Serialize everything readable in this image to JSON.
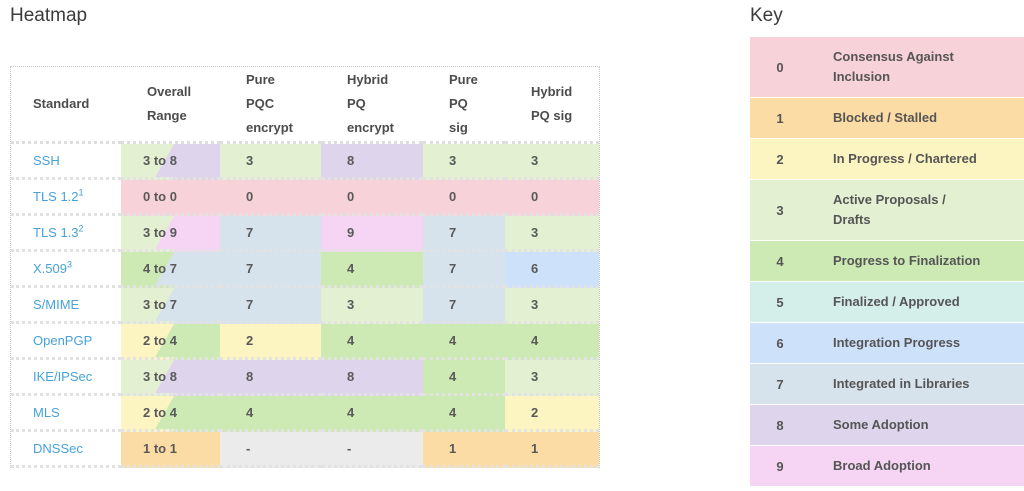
{
  "titles": {
    "heatmap": "Heatmap",
    "key": "Key"
  },
  "chart_data": {
    "type": "heatmap",
    "title": "Heatmap",
    "legend_title": "Key",
    "columns": [
      {
        "label": "Standard",
        "lines": [
          "Standard"
        ]
      },
      {
        "label": "Overall Range",
        "lines": [
          "Overall",
          "Range"
        ]
      },
      {
        "label": "Pure PQC encrypt",
        "lines": [
          "Pure",
          "PQC",
          "encrypt"
        ]
      },
      {
        "label": "Hybrid PQ encrypt",
        "lines": [
          "Hybrid",
          "PQ",
          "encrypt"
        ]
      },
      {
        "label": "Pure PQ sig",
        "lines": [
          "Pure",
          "PQ",
          "sig"
        ]
      },
      {
        "label": "Hybrid PQ sig",
        "lines": [
          "Hybrid",
          "PQ sig"
        ]
      }
    ],
    "rows": [
      {
        "standard": "SSH",
        "sup": "",
        "range": "3 to 8",
        "min": "3",
        "max": "8",
        "values": [
          "3",
          "8",
          "3",
          "3"
        ]
      },
      {
        "standard": "TLS 1.2",
        "sup": "1",
        "range": "0 to 0",
        "min": "0",
        "max": "0",
        "values": [
          "0",
          "0",
          "0",
          "0"
        ]
      },
      {
        "standard": "TLS 1.3",
        "sup": "2",
        "range": "3 to 9",
        "min": "3",
        "max": "9",
        "values": [
          "7",
          "9",
          "7",
          "3"
        ]
      },
      {
        "standard": "X.509",
        "sup": "3",
        "range": "4 to 7",
        "min": "4",
        "max": "7",
        "values": [
          "7",
          "4",
          "7",
          "6"
        ]
      },
      {
        "standard": "S/MIME",
        "sup": "",
        "range": "3 to 7",
        "min": "3",
        "max": "7",
        "values": [
          "7",
          "3",
          "7",
          "3"
        ]
      },
      {
        "standard": "OpenPGP",
        "sup": "",
        "range": "2 to 4",
        "min": "2",
        "max": "4",
        "values": [
          "2",
          "4",
          "4",
          "4"
        ]
      },
      {
        "standard": "IKE/IPSec",
        "sup": "",
        "range": "3 to 8",
        "min": "3",
        "max": "8",
        "values": [
          "8",
          "8",
          "4",
          "3"
        ]
      },
      {
        "standard": "MLS",
        "sup": "",
        "range": "2 to 4",
        "min": "2",
        "max": "4",
        "values": [
          "4",
          "4",
          "4",
          "2"
        ]
      },
      {
        "standard": "DNSSec",
        "sup": "",
        "range": "1 to 1",
        "min": "1",
        "max": "1",
        "values": [
          "-",
          "-",
          "1",
          "1"
        ]
      }
    ],
    "legend": [
      {
        "value": "0",
        "label": "Consensus Against Inclusion",
        "lines": [
          "Consensus Against",
          "Inclusion"
        ]
      },
      {
        "value": "1",
        "label": "Blocked / Stalled",
        "lines": [
          "Blocked / Stalled"
        ]
      },
      {
        "value": "2",
        "label": "In Progress / Chartered",
        "lines": [
          "In Progress / Chartered"
        ]
      },
      {
        "value": "3",
        "label": "Active Proposals / Drafts",
        "lines": [
          "Active Proposals /",
          "Drafts"
        ]
      },
      {
        "value": "4",
        "label": "Progress to Finalization",
        "lines": [
          "Progress to Finalization"
        ]
      },
      {
        "value": "5",
        "label": "Finalized / Approved",
        "lines": [
          "Finalized / Approved"
        ]
      },
      {
        "value": "6",
        "label": "Integration Progress",
        "lines": [
          "Integration Progress"
        ]
      },
      {
        "value": "7",
        "label": "Integrated in Libraries",
        "lines": [
          "Integrated in Libraries"
        ]
      },
      {
        "value": "8",
        "label": "Some Adoption",
        "lines": [
          "Some Adoption"
        ]
      },
      {
        "value": "9",
        "label": "Broad Adoption",
        "lines": [
          "Broad Adoption"
        ]
      }
    ],
    "palette": {
      "0": "#f7d2d8",
      "1": "#fbdca4",
      "2": "#fcf5c1",
      "3": "#e3f0d1",
      "4": "#cdeab4",
      "5": "#d4efe9",
      "6": "#cee1fa",
      "7": "#d6e2ec",
      "8": "#ded5ec",
      "9": "#f5d5f3",
      "na": "#ebebeb"
    },
    "link_color": "#46a2da"
  }
}
